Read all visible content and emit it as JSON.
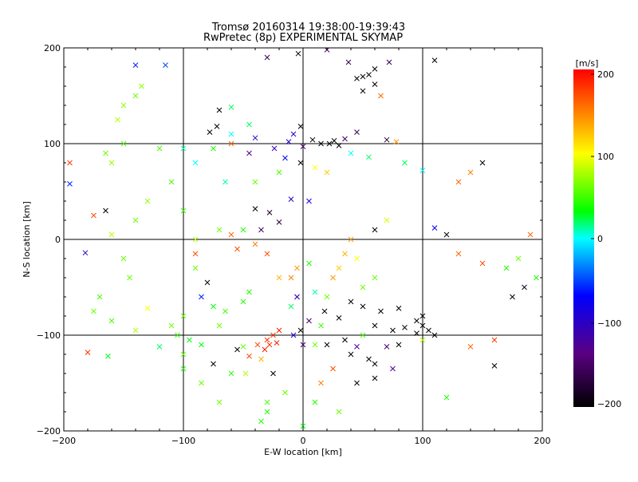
{
  "chart_data": {
    "type": "scatter",
    "title": "Tromsø 20160314 19:38:00-19:39:43",
    "subtitle": "RwPretec (8p) EXPERIMENTAL SKYMAP",
    "xlabel": "E-W location [km]",
    "ylabel": "N-S location [km]",
    "xlim": [
      -200,
      200
    ],
    "ylim": [
      -200,
      200
    ],
    "xticks": [
      "−200",
      "−100",
      "0",
      "100",
      "200"
    ],
    "yticks": [
      "−200",
      "−100",
      "0",
      "100",
      "200"
    ],
    "grid": true,
    "colorbar": {
      "label": "[m/s]",
      "range": [
        -200,
        200
      ],
      "ticks": [
        "200",
        "100",
        "0",
        "−100",
        "−200"
      ],
      "colormap": [
        "#000000",
        "#5a0082",
        "#0000ff",
        "#00ffff",
        "#00ff00",
        "#ffff00",
        "#ff0000"
      ]
    },
    "points_large": [
      [
        -140,
        182,
        -60
      ],
      [
        -115,
        182,
        -50
      ],
      [
        -4,
        194,
        -200
      ],
      [
        -30,
        190,
        -160
      ],
      [
        20,
        198,
        -150
      ],
      [
        38,
        185,
        -160
      ],
      [
        45,
        168,
        -200
      ],
      [
        50,
        170,
        -200
      ],
      [
        55,
        172,
        -200
      ],
      [
        60,
        178,
        -200
      ],
      [
        72,
        185,
        -160
      ],
      [
        110,
        187,
        -200
      ],
      [
        65,
        150,
        160
      ],
      [
        60,
        162,
        -200
      ],
      [
        50,
        155,
        -190
      ],
      [
        -72,
        118,
        -200
      ],
      [
        -78,
        112,
        -200
      ],
      [
        -60,
        100,
        160
      ],
      [
        -40,
        106,
        -100
      ],
      [
        -24,
        95,
        -110
      ],
      [
        -12,
        102,
        -90
      ],
      [
        0,
        97,
        -150
      ],
      [
        8,
        104,
        -200
      ],
      [
        15,
        100,
        -200
      ],
      [
        22,
        100,
        -200
      ],
      [
        26,
        103,
        -200
      ],
      [
        30,
        98,
        -200
      ],
      [
        35,
        105,
        -150
      ],
      [
        45,
        112,
        -160
      ],
      [
        70,
        104,
        -170
      ],
      [
        78,
        102,
        140
      ],
      [
        -2,
        118,
        -200
      ],
      [
        -8,
        110,
        -90
      ],
      [
        -45,
        90,
        -130
      ],
      [
        -15,
        85,
        -70
      ],
      [
        -2,
        80,
        -200
      ],
      [
        10,
        75,
        100
      ],
      [
        20,
        70,
        120
      ],
      [
        40,
        90,
        0
      ],
      [
        55,
        86,
        20
      ],
      [
        85,
        80,
        20
      ],
      [
        100,
        72,
        0
      ],
      [
        150,
        80,
        -200
      ],
      [
        140,
        70,
        150
      ],
      [
        130,
        60,
        160
      ],
      [
        -195,
        80,
        180
      ],
      [
        -195,
        58,
        -60
      ],
      [
        -175,
        25,
        170
      ],
      [
        -165,
        30,
        -200
      ],
      [
        -40,
        32,
        -200
      ],
      [
        -28,
        28,
        -180
      ],
      [
        -20,
        18,
        -170
      ],
      [
        -35,
        10,
        -150
      ],
      [
        -10,
        42,
        -100
      ],
      [
        5,
        40,
        -90
      ],
      [
        60,
        10,
        -200
      ],
      [
        70,
        20,
        90
      ],
      [
        110,
        12,
        -70
      ],
      [
        120,
        5,
        -200
      ],
      [
        130,
        -15,
        160
      ],
      [
        150,
        -25,
        170
      ],
      [
        170,
        -30,
        40
      ],
      [
        180,
        -20,
        60
      ],
      [
        190,
        5,
        160
      ],
      [
        195,
        -40,
        40
      ],
      [
        185,
        -50,
        -180
      ],
      [
        175,
        -60,
        -200
      ],
      [
        -182,
        -14,
        -100
      ],
      [
        -130,
        -72,
        100
      ],
      [
        -110,
        -90,
        60
      ],
      [
        -100,
        -80,
        60
      ],
      [
        -75,
        -70,
        30
      ],
      [
        -50,
        -65,
        40
      ],
      [
        -45,
        -55,
        40
      ],
      [
        -30,
        -15,
        170
      ],
      [
        -40,
        -5,
        150
      ],
      [
        -55,
        -10,
        170
      ],
      [
        -60,
        5,
        160
      ],
      [
        -90,
        -15,
        170
      ],
      [
        -80,
        -45,
        -200
      ],
      [
        -120,
        -112,
        20
      ],
      [
        -180,
        -118,
        180
      ],
      [
        -163,
        -122,
        30
      ],
      [
        -50,
        -112,
        60
      ],
      [
        -45,
        -122,
        170
      ],
      [
        -55,
        -115,
        -200
      ],
      [
        -35,
        -125,
        130
      ],
      [
        -30,
        -105,
        180
      ],
      [
        -28,
        -110,
        180
      ],
      [
        -25,
        -100,
        180
      ],
      [
        -22,
        -108,
        190
      ],
      [
        -32,
        -115,
        190
      ],
      [
        -38,
        -110,
        170
      ],
      [
        -20,
        -95,
        190
      ],
      [
        -25,
        -140,
        -200
      ],
      [
        -48,
        -140,
        80
      ],
      [
        -30,
        -170,
        50
      ],
      [
        -30,
        -180,
        40
      ],
      [
        -35,
        -190,
        40
      ],
      [
        -60,
        -140,
        40
      ],
      [
        0,
        -195,
        30
      ],
      [
        15,
        -150,
        150
      ],
      [
        25,
        -135,
        170
      ],
      [
        40,
        -120,
        -200
      ],
      [
        55,
        -125,
        -200
      ],
      [
        60,
        -130,
        -200
      ],
      [
        70,
        -112,
        -150
      ],
      [
        80,
        -110,
        -200
      ],
      [
        85,
        -92,
        -200
      ],
      [
        95,
        -98,
        -200
      ],
      [
        100,
        -90,
        -200
      ],
      [
        105,
        -95,
        -200
      ],
      [
        110,
        -100,
        -200
      ],
      [
        95,
        -85,
        -200
      ],
      [
        100,
        -80,
        -200
      ],
      [
        75,
        -95,
        -200
      ],
      [
        60,
        -90,
        -200
      ],
      [
        50,
        -100,
        50
      ],
      [
        45,
        -112,
        -120
      ],
      [
        35,
        -105,
        -200
      ],
      [
        20,
        -110,
        -200
      ],
      [
        10,
        -110,
        60
      ],
      [
        18,
        -75,
        -200
      ],
      [
        30,
        -82,
        -200
      ],
      [
        40,
        -65,
        -200
      ],
      [
        50,
        -70,
        -200
      ],
      [
        65,
        -75,
        -200
      ],
      [
        80,
        -72,
        -200
      ],
      [
        20,
        -60,
        60
      ],
      [
        -10,
        -40,
        150
      ],
      [
        -5,
        -30,
        140
      ],
      [
        -20,
        -40,
        130
      ],
      [
        5,
        -25,
        40
      ],
      [
        10,
        -55,
        10
      ],
      [
        -10,
        -70,
        20
      ],
      [
        15,
        -90,
        50
      ],
      [
        -5,
        -60,
        -40
      ],
      [
        25,
        -40,
        140
      ],
      [
        30,
        -30,
        120
      ],
      [
        35,
        -15,
        130
      ],
      [
        40,
        0,
        140
      ],
      [
        45,
        -20,
        100
      ],
      [
        50,
        -50,
        60
      ],
      [
        60,
        -40,
        60
      ],
      [
        120,
        -165,
        40
      ],
      [
        160,
        -132,
        -200
      ],
      [
        140,
        -112,
        160
      ],
      [
        160,
        -105,
        180
      ],
      [
        100,
        -105,
        80
      ],
      [
        75,
        -135,
        -130
      ],
      [
        60,
        -145,
        -200
      ],
      [
        45,
        -150,
        -200
      ],
      [
        -5,
        -60,
        -120
      ],
      [
        5,
        -85,
        -150
      ],
      [
        -8,
        -100,
        -80
      ],
      [
        0,
        -110,
        -150
      ],
      [
        -15,
        -160,
        60
      ],
      [
        10,
        -170,
        40
      ],
      [
        30,
        -180,
        60
      ],
      [
        -2,
        -95,
        -200
      ],
      [
        -85,
        -110,
        30
      ],
      [
        -95,
        -105,
        30
      ],
      [
        -105,
        -100,
        50
      ],
      [
        -75,
        -130,
        -200
      ],
      [
        -70,
        -90,
        60
      ],
      [
        -65,
        -75,
        50
      ],
      [
        -85,
        -60,
        -60
      ],
      [
        -90,
        -30,
        60
      ],
      [
        -100,
        30,
        50
      ],
      [
        -90,
        0,
        80
      ],
      [
        -70,
        10,
        60
      ],
      [
        -50,
        10,
        40
      ],
      [
        -65,
        60,
        10
      ],
      [
        -90,
        80,
        0
      ],
      [
        -100,
        95,
        10
      ],
      [
        -40,
        60,
        60
      ],
      [
        -20,
        70,
        50
      ],
      [
        -45,
        120,
        20
      ],
      [
        -60,
        110,
        0
      ],
      [
        -75,
        95,
        40
      ],
      [
        -70,
        135,
        -200
      ],
      [
        -60,
        138,
        20
      ],
      [
        -135,
        160,
        70
      ],
      [
        -140,
        150,
        60
      ],
      [
        -150,
        140,
        70
      ],
      [
        -155,
        125,
        80
      ],
      [
        -150,
        100,
        50
      ],
      [
        -165,
        90,
        60
      ],
      [
        -160,
        80,
        70
      ],
      [
        -120,
        95,
        50
      ],
      [
        -110,
        60,
        50
      ],
      [
        -130,
        40,
        70
      ],
      [
        -140,
        20,
        60
      ],
      [
        -160,
        5,
        80
      ],
      [
        -150,
        -20,
        60
      ],
      [
        -145,
        -40,
        60
      ],
      [
        -170,
        -60,
        50
      ],
      [
        -175,
        -75,
        60
      ],
      [
        -160,
        -85,
        50
      ],
      [
        -140,
        -95,
        80
      ],
      [
        -100,
        -120,
        60
      ],
      [
        -100,
        -135,
        40
      ],
      [
        -85,
        -150,
        60
      ],
      [
        -70,
        -170,
        60
      ]
    ]
  }
}
